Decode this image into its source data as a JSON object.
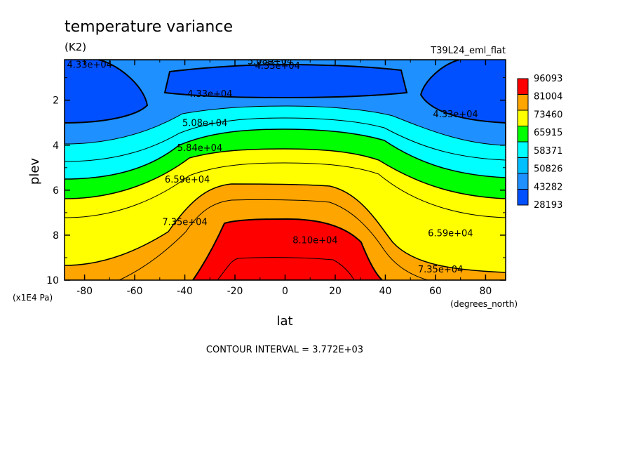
{
  "chart_data": {
    "type": "contour",
    "title": "temperature variance",
    "units": "(K2)",
    "run_label": "T39L24_eml_flat",
    "xlabel": "lat",
    "xunits": "(degrees_north)",
    "ylabel": "plev",
    "yunits": "(x1E4 Pa)",
    "xlim": [
      -88,
      88
    ],
    "ylim": [
      10,
      0.2
    ],
    "x_ticks": [
      "-80",
      "-60",
      "-40",
      "-20",
      "0",
      "20",
      "40",
      "60",
      "80"
    ],
    "y_ticks": [
      "2",
      "4",
      "6",
      "8",
      "10"
    ],
    "colorbar": {
      "labels": [
        "96093",
        "81004",
        "73460",
        "65915",
        "58371",
        "50826",
        "43282",
        "28193"
      ],
      "colors": [
        "#ff0000",
        "#ffa500",
        "#ffff00",
        "#00ff00",
        "#00ffff",
        "#00bfff",
        "#1e90ff",
        "#0050ff"
      ]
    },
    "contour_labels": [
      {
        "text": "4.33e+04",
        "lat": -78,
        "plev": 0.4
      },
      {
        "text": "5.08e+04",
        "lat": -6,
        "plev": 0.25
      },
      {
        "text": "4.33e+04",
        "lat": -3,
        "plev": 0.45
      },
      {
        "text": "4.33e+04",
        "lat": -30,
        "plev": 1.7
      },
      {
        "text": "4.33e+04",
        "lat": 68,
        "plev": 2.6
      },
      {
        "text": "5.08e+04",
        "lat": -32,
        "plev": 3.0
      },
      {
        "text": "5.84e+04",
        "lat": -34,
        "plev": 4.1
      },
      {
        "text": "6.59e+04",
        "lat": -39,
        "plev": 5.5
      },
      {
        "text": "7.35e+04",
        "lat": -40,
        "plev": 7.4
      },
      {
        "text": "8.10e+04",
        "lat": 12,
        "plev": 8.2
      },
      {
        "text": "6.59e+04",
        "lat": 66,
        "plev": 7.9
      },
      {
        "text": "7.35e+04",
        "lat": 62,
        "plev": 9.5
      }
    ],
    "contour_interval": "CONTOUR INTERVAL = 3.772E+03"
  }
}
